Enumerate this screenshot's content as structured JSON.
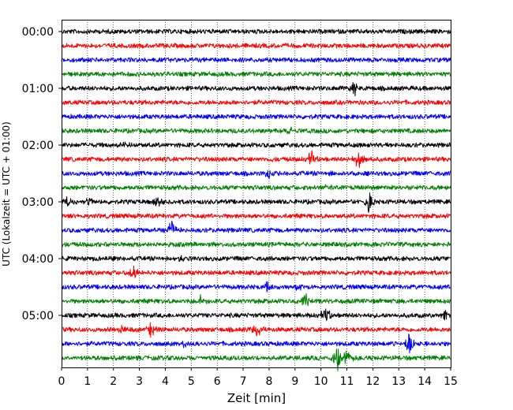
{
  "chart_data": {
    "type": "line",
    "chart_kind": "helicorder seismogram",
    "xlabel": "Zeit  [min]",
    "ylabel": "UTC (Lokalzeit = UTC + 01:00)",
    "xlim": [
      0,
      15
    ],
    "x_ticks": [
      "0",
      "1",
      "2",
      "3",
      "4",
      "5",
      "6",
      "7",
      "8",
      "9",
      "10",
      "11",
      "12",
      "13",
      "14",
      "15"
    ],
    "y_tick_labels": [
      "00:00",
      "01:00",
      "02:00",
      "03:00",
      "04:00",
      "05:00"
    ],
    "row_minutes": 15,
    "grid": "vertical dotted lines at each minute",
    "row_colors": [
      "#000000",
      "#ff0000",
      "#0000ff",
      "#008000"
    ],
    "rows": [
      {
        "start": "00:00",
        "events": []
      },
      {
        "start": "00:15",
        "events": []
      },
      {
        "start": "00:30",
        "events": []
      },
      {
        "start": "00:45",
        "events": []
      },
      {
        "start": "01:00",
        "events": [
          {
            "minute": 11.3,
            "amplitude": 0.5
          }
        ]
      },
      {
        "start": "01:15",
        "events": []
      },
      {
        "start": "01:30",
        "events": []
      },
      {
        "start": "01:45",
        "events": [
          {
            "minute": 8.8,
            "amplitude": 0.25
          }
        ]
      },
      {
        "start": "02:00",
        "events": [
          {
            "minute": 2.5,
            "amplitude": 0.25
          }
        ]
      },
      {
        "start": "02:15",
        "events": [
          {
            "minute": 9.65,
            "amplitude": 0.6
          },
          {
            "minute": 11.45,
            "amplitude": 0.55
          }
        ]
      },
      {
        "start": "02:30",
        "events": [
          {
            "minute": 8.0,
            "amplitude": 0.3
          }
        ]
      },
      {
        "start": "02:45",
        "events": [
          {
            "minute": 10.2,
            "amplitude": 0.35
          }
        ]
      },
      {
        "start": "03:00",
        "events": [
          {
            "minute": 0.2,
            "amplitude": 0.4
          },
          {
            "minute": 1.0,
            "amplitude": 0.3
          },
          {
            "minute": 3.7,
            "amplitude": 0.25
          },
          {
            "minute": 11.85,
            "amplitude": 0.65
          }
        ]
      },
      {
        "start": "03:15",
        "events": []
      },
      {
        "start": "03:30",
        "events": [
          {
            "minute": 4.25,
            "amplitude": 0.6
          }
        ]
      },
      {
        "start": "03:45",
        "events": []
      },
      {
        "start": "04:00",
        "events": [
          {
            "minute": 4.6,
            "amplitude": 0.25
          }
        ]
      },
      {
        "start": "04:15",
        "events": [
          {
            "minute": 2.75,
            "amplitude": 0.6
          }
        ]
      },
      {
        "start": "04:30",
        "events": [
          {
            "minute": 7.9,
            "amplitude": 0.45
          },
          {
            "minute": 9.1,
            "amplitude": 0.25
          }
        ]
      },
      {
        "start": "04:45",
        "events": [
          {
            "minute": 5.35,
            "amplitude": 0.35
          },
          {
            "minute": 9.4,
            "amplitude": 0.55
          }
        ]
      },
      {
        "start": "05:00",
        "events": [
          {
            "minute": 10.2,
            "amplitude": 0.65
          },
          {
            "minute": 14.8,
            "amplitude": 0.3
          }
        ]
      },
      {
        "start": "05:15",
        "events": [
          {
            "minute": 3.45,
            "amplitude": 0.5
          },
          {
            "minute": 7.55,
            "amplitude": 0.55
          },
          {
            "minute": 2.3,
            "amplitude": 0.25
          }
        ]
      },
      {
        "start": "05:30",
        "events": [
          {
            "minute": 4.7,
            "amplitude": 0.35
          },
          {
            "minute": 13.4,
            "amplitude": 0.7
          }
        ]
      },
      {
        "start": "05:45",
        "events": [
          {
            "minute": 10.65,
            "amplitude": 0.8
          },
          {
            "minute": 11.0,
            "amplitude": 0.6
          }
        ]
      }
    ]
  }
}
